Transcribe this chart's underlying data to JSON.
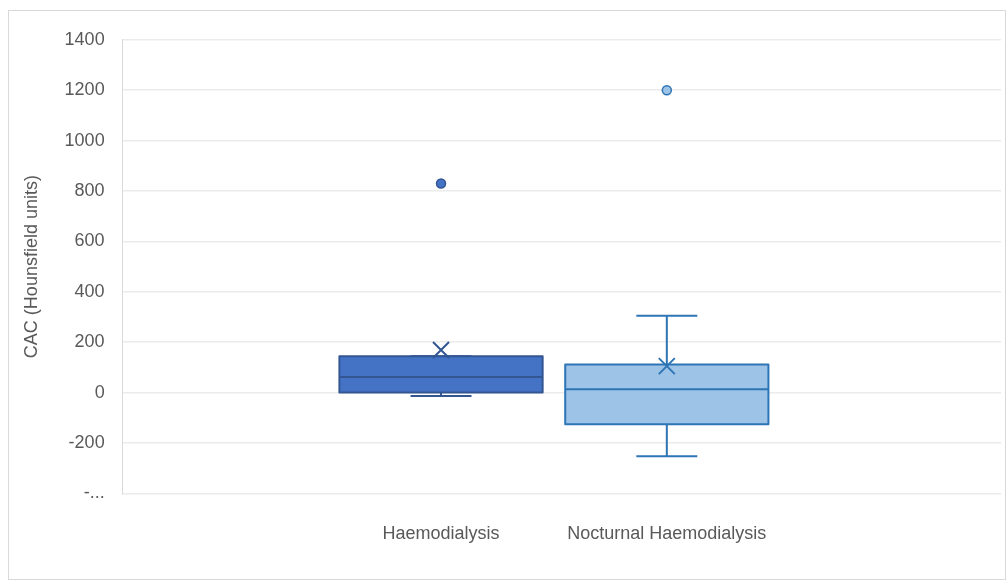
{
  "chart_data": {
    "type": "box",
    "ylabel": "CAC (Hounsfield units)",
    "categories": [
      "Haemodialysis",
      "Nocturnal Haemodialysis"
    ],
    "colors": [
      "#4472c4",
      "#9dc3e6"
    ],
    "boxes": [
      {
        "low": -13,
        "q1": 0,
        "median": 62,
        "q3": 144,
        "high": 144,
        "mean": 169,
        "outliers": [
          830
        ]
      },
      {
        "low": -253,
        "q1": -126,
        "median": 13,
        "q3": 112,
        "high": 305,
        "mean": 105,
        "outliers": [
          1200
        ]
      }
    ],
    "ylim": [
      -400,
      1400
    ],
    "yticks": [
      {
        "value": -400,
        "label": "-..."
      },
      -200,
      0,
      200,
      400,
      600,
      800,
      1000,
      1200,
      1400
    ],
    "grid": "y",
    "legend": false,
    "marker": "circle"
  }
}
